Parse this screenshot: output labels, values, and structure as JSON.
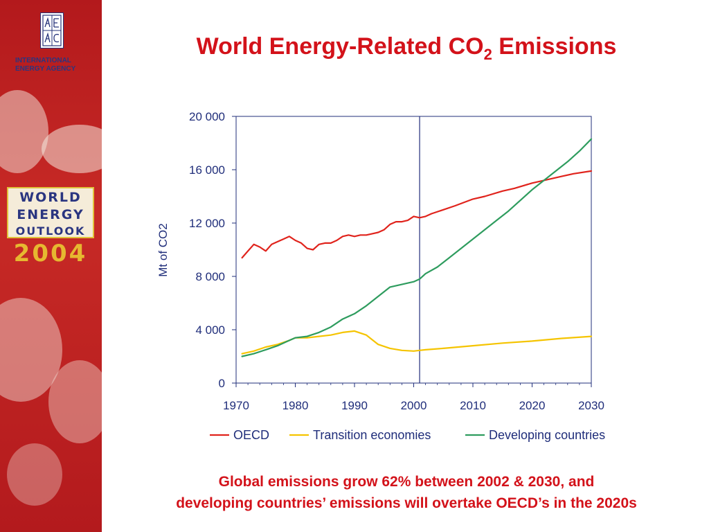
{
  "sidebar": {
    "org_name_line1": "INTERNATIONAL",
    "org_name_line2": "ENERGY AGENCY",
    "logo_icon": "iea-logo-icon",
    "publication_line1": "WORLD",
    "publication_line2": "ENERGY",
    "publication_line3": "OUTLOOK",
    "publication_year": "2004"
  },
  "title": {
    "main": "World Energy-Related CO",
    "subscript": "2",
    "tail": " Emissions"
  },
  "caption": {
    "line1": "Global emissions grow 62% between 2002 & 2030, and",
    "line2": "developing countries’ emissions will overtake OECD’s in the 2020s"
  },
  "colors": {
    "title": "#d3121a",
    "axis_text": "#1f2d7a",
    "oecd": "#e0231c",
    "transition": "#f5c400",
    "developing": "#2e9c5e"
  },
  "chart_data": {
    "type": "line",
    "title": "",
    "xlabel": "",
    "ylabel": "Mt of CO2",
    "xlim": [
      1970,
      2030
    ],
    "ylim": [
      0,
      20000
    ],
    "x_ticks": [
      1970,
      1980,
      1990,
      2000,
      2010,
      2020,
      2030
    ],
    "y_ticks": [
      0,
      4000,
      8000,
      12000,
      16000,
      20000
    ],
    "x_tick_labels": [
      "1970",
      "1980",
      "1990",
      "2000",
      "2010",
      "2020",
      "2030"
    ],
    "y_tick_labels": [
      "0",
      "4 000",
      "8 000",
      "12 000",
      "16 000",
      "20 000"
    ],
    "vertical_marker_x": 2001,
    "grid": false,
    "legend_position": "bottom",
    "series": [
      {
        "name": "OECD",
        "color": "#e0231c",
        "x": [
          1971,
          1972,
          1973,
          1974,
          1975,
          1976,
          1977,
          1978,
          1979,
          1980,
          1981,
          1982,
          1983,
          1984,
          1985,
          1986,
          1987,
          1988,
          1989,
          1990,
          1991,
          1992,
          1993,
          1994,
          1995,
          1996,
          1997,
          1998,
          1999,
          2000,
          2001,
          2002,
          2003,
          2005,
          2007,
          2010,
          2012,
          2015,
          2017,
          2020,
          2022,
          2025,
          2027,
          2030
        ],
        "values": [
          9400,
          9900,
          10400,
          10200,
          9900,
          10400,
          10600,
          10800,
          11000,
          10700,
          10500,
          10100,
          10000,
          10400,
          10500,
          10500,
          10700,
          11000,
          11100,
          11000,
          11100,
          11100,
          11200,
          11300,
          11500,
          11900,
          12100,
          12100,
          12200,
          12500,
          12400,
          12500,
          12700,
          13000,
          13300,
          13800,
          14000,
          14400,
          14600,
          15000,
          15200,
          15500,
          15700,
          15900
        ]
      },
      {
        "name": "Transition economies",
        "color": "#f5c400",
        "x": [
          1971,
          1973,
          1975,
          1977,
          1979,
          1980,
          1982,
          1984,
          1986,
          1988,
          1990,
          1992,
          1994,
          1996,
          1998,
          2000,
          2001,
          2002,
          2005,
          2010,
          2015,
          2020,
          2025,
          2030
        ],
        "values": [
          2200,
          2400,
          2700,
          2900,
          3200,
          3400,
          3400,
          3500,
          3600,
          3800,
          3900,
          3600,
          2900,
          2600,
          2450,
          2400,
          2450,
          2500,
          2600,
          2800,
          3000,
          3150,
          3350,
          3500
        ]
      },
      {
        "name": "Developing countries",
        "color": "#2e9c5e",
        "x": [
          1971,
          1973,
          1975,
          1977,
          1979,
          1980,
          1982,
          1984,
          1986,
          1988,
          1990,
          1992,
          1994,
          1996,
          1998,
          2000,
          2001,
          2002,
          2004,
          2006,
          2008,
          2010,
          2012,
          2014,
          2016,
          2018,
          2020,
          2022,
          2024,
          2026,
          2028,
          2030
        ],
        "values": [
          2000,
          2200,
          2500,
          2800,
          3200,
          3400,
          3500,
          3800,
          4200,
          4800,
          5200,
          5800,
          6500,
          7200,
          7400,
          7600,
          7800,
          8200,
          8700,
          9400,
          10100,
          10800,
          11500,
          12200,
          12900,
          13700,
          14500,
          15200,
          15900,
          16600,
          17400,
          18300
        ]
      }
    ]
  }
}
